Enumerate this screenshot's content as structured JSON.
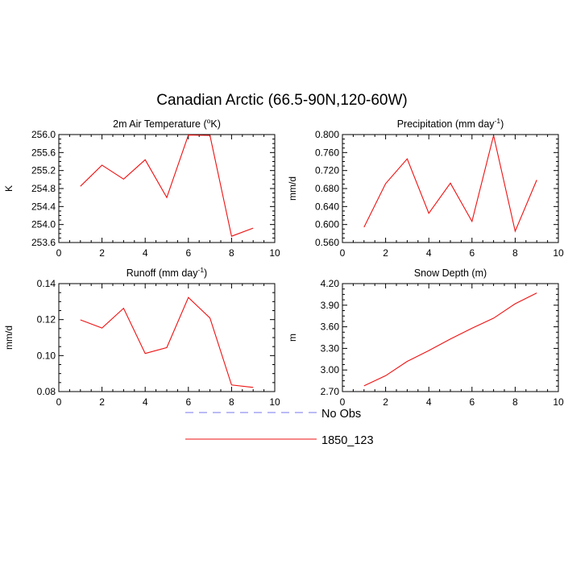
{
  "figure": {
    "title": "Canadian Arctic (66.5-90N,120-60W)"
  },
  "legend": [
    {
      "label": "No Obs",
      "color": "#7777ee",
      "dashed": true
    },
    {
      "label": "1850_123",
      "color": "#ee1111",
      "dashed": false
    }
  ],
  "chart_data": [
    {
      "type": "line",
      "title": "2m Air Temperature (°K)",
      "title_main": "2m Air Temperature (",
      "title_sup": "o",
      "title_end": "K)",
      "ylabel": "K",
      "xlim": [
        0,
        10
      ],
      "ylim": [
        253.6,
        256.0
      ],
      "xticks": [
        0,
        2,
        4,
        6,
        8,
        10
      ],
      "yticks": [
        "253.6",
        "254.0",
        "254.4",
        "254.8",
        "255.2",
        "255.6",
        "256.0"
      ],
      "x": [
        1,
        2,
        3,
        4,
        5,
        6,
        7,
        8,
        9
      ],
      "series": [
        {
          "name": "1850_123",
          "color": "#ee1111",
          "values": [
            254.85,
            255.32,
            255.01,
            255.44,
            254.6,
            255.99,
            255.98,
            253.74,
            253.92
          ]
        }
      ]
    },
    {
      "type": "line",
      "title": "Precipitation (mm day-1)",
      "title_main": "Precipitation (mm day",
      "title_sup": "-1",
      "title_end": ")",
      "ylabel": "mm/d",
      "xlim": [
        0,
        10
      ],
      "ylim": [
        0.56,
        0.8
      ],
      "xticks": [
        0,
        2,
        4,
        6,
        8,
        10
      ],
      "yticks": [
        "0.560",
        "0.600",
        "0.640",
        "0.680",
        "0.720",
        "0.760",
        "0.800"
      ],
      "x": [
        1,
        2,
        3,
        4,
        5,
        6,
        7,
        8,
        9
      ],
      "series": [
        {
          "name": "1850_123",
          "color": "#ee1111",
          "values": [
            0.594,
            0.691,
            0.746,
            0.625,
            0.692,
            0.607,
            0.798,
            0.585,
            0.699
          ]
        }
      ]
    },
    {
      "type": "line",
      "title": "Runoff (mm day-1)",
      "title_main": "Runoff (mm day",
      "title_sup": "-1",
      "title_end": ")",
      "ylabel": "mm/d",
      "xlim": [
        0,
        10
      ],
      "ylim": [
        0.07,
        0.14
      ],
      "xticks": [
        0,
        2,
        4,
        6,
        8,
        10
      ],
      "yticks": [
        "0.08",
        "0.10",
        "0.12",
        "0.14"
      ],
      "x": [
        1,
        2,
        3,
        4,
        5,
        6,
        7,
        8,
        9
      ],
      "series": [
        {
          "name": "1850_123",
          "color": "#ee1111",
          "values": [
            0.1165,
            0.1112,
            0.124,
            0.0947,
            0.0985,
            0.131,
            0.1177,
            0.0743,
            0.0727
          ]
        }
      ]
    },
    {
      "type": "line",
      "title": "Snow Depth (m)",
      "title_main": "Snow Depth (m)",
      "title_sup": "",
      "title_end": "",
      "ylabel": "m",
      "xlim": [
        0,
        10
      ],
      "ylim": [
        2.7,
        4.2
      ],
      "xticks": [
        0,
        2,
        4,
        6,
        8,
        10
      ],
      "yticks": [
        "2.70",
        "3.00",
        "3.30",
        "3.60",
        "3.90",
        "4.20"
      ],
      "x": [
        1,
        2,
        3,
        4,
        5,
        6,
        7,
        8,
        9
      ],
      "series": [
        {
          "name": "1850_123",
          "color": "#ee1111",
          "values": [
            2.78,
            2.92,
            3.12,
            3.27,
            3.43,
            3.58,
            3.72,
            3.92,
            4.07
          ]
        }
      ]
    }
  ]
}
